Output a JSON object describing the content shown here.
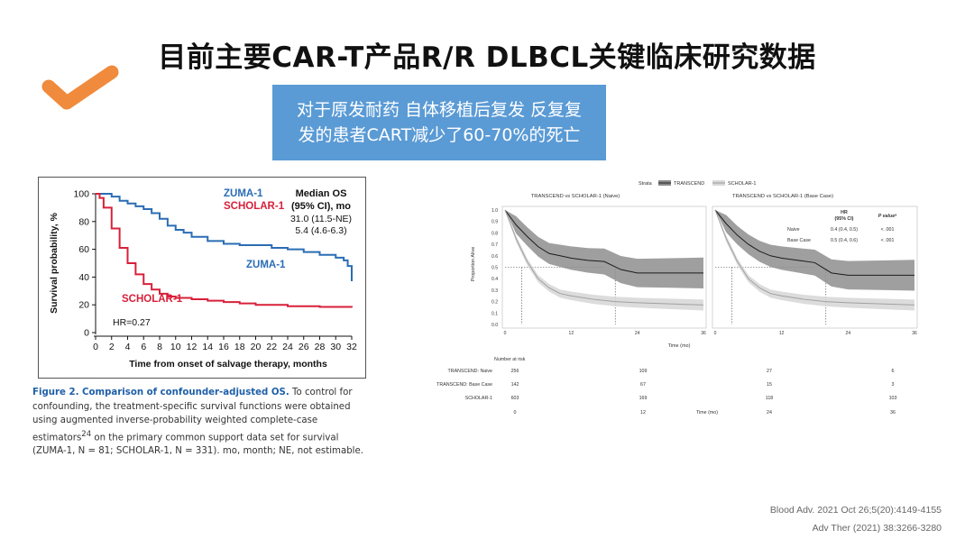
{
  "slide": {
    "title": "目前主要CAR-T产品R/R DLBCL关键临床研究数据",
    "callout_line1": "对于原发耐药 自体移植后复发 反复复",
    "callout_line2": "发的患者CART减少了60-70%的死亡",
    "ref1": "Blood Adv. 2021 Oct 26;5(20):4149-4155",
    "ref2": "Adv Ther (2021) 38:3266-3280",
    "check_icon": "orange-checkmark-icon",
    "colors": {
      "check": "#f08a3c",
      "callout": "#5b9bd5",
      "zuma": "#2a6db5",
      "scholar": "#d8203a"
    }
  },
  "figure1": {
    "caption_bold": "Figure 2. Comparison of confounder-adjusted OS.",
    "caption_text": " To control for confounding, the treatment-specific survival functions were obtained using augmented inverse-probability weighted complete-case estimators",
    "caption_sup": "24",
    "caption_tail": " on the primary common support data set for survival (ZUMA-1, N = 81; SCHOLAR-1, N = 331). mo, month; NE, not estimable.",
    "legend_zuma": "ZUMA-1",
    "legend_scholar": "SCHOLAR-1",
    "median_header1": "Median OS",
    "median_header2": "(95% CI), mo",
    "median_zuma": "31.0 (11.5-NE)",
    "median_scholar": "5.4 (4.6-6.3)",
    "label_zuma": "ZUMA-1",
    "label_scholar": "SCHOLAR-1",
    "hr": "HR=0.27"
  },
  "figure2": {
    "strata_label": "Strata",
    "legend_transcend": "TRANSCEND",
    "legend_scholar": "SCHOLAR-1",
    "panel_left_title": "TRANSCEND vs SCHOLAR-1 (Naive)",
    "panel_right_title": "TRANSCEND vs SCHOLAR-1 (Base Case)",
    "ylabel": "Proportion Alive",
    "xlabel": "Time (mo)",
    "hr_header": "HR",
    "hr_subheader": "(95% CI)",
    "p_header": "P valueᵃ",
    "hr_rows": [
      {
        "label": "Naive",
        "hr": "0.4 (0.4, 0.5)",
        "p": "< .001"
      },
      {
        "label": "Base Case",
        "hr": "0.5 (0.4, 0.6)",
        "p": "< .001"
      }
    ],
    "risk_header": "Number at risk",
    "risk_rows": [
      {
        "label": "TRANSCEND: Naive",
        "values": [
          "256",
          "109",
          "27",
          "6"
        ]
      },
      {
        "label": "TRANSCEND: Base Case",
        "values": [
          "142",
          "67",
          "15",
          "3"
        ]
      },
      {
        "label": "SCHOLAR-1",
        "values": [
          "603",
          "169",
          "118",
          "103"
        ]
      }
    ],
    "risk_ticks": [
      "0",
      "12",
      "24",
      "36"
    ],
    "risk_xlabel": "Time (mo)"
  },
  "chart_data": [
    {
      "type": "line",
      "xlabel": "Time from onset of salvage therapy, months",
      "ylabel": "Survival probability, %",
      "xlim": [
        0,
        32
      ],
      "ylim": [
        0,
        100
      ],
      "xticks": [
        0,
        2,
        4,
        6,
        8,
        10,
        12,
        14,
        16,
        18,
        20,
        22,
        24,
        26,
        28,
        30,
        32
      ],
      "yticks": [
        0,
        20,
        40,
        60,
        80,
        100
      ],
      "grid": false,
      "legend": "top-right",
      "series": [
        {
          "name": "ZUMA-1",
          "color": "#2a6db5",
          "x": [
            0,
            1,
            2,
            3,
            4,
            5,
            6,
            7,
            8,
            9,
            10,
            11,
            12,
            14,
            16,
            18,
            20,
            22,
            24,
            26,
            28,
            30,
            31,
            31.5,
            32
          ],
          "y": [
            100,
            100,
            98,
            95,
            93,
            91,
            89,
            86,
            82,
            77,
            74,
            72,
            69,
            66,
            64,
            63,
            63,
            61,
            60,
            58,
            56,
            54,
            52,
            48,
            37
          ]
        },
        {
          "name": "SCHOLAR-1",
          "color": "#d8203a",
          "x": [
            0,
            0.5,
            1,
            2,
            3,
            4,
            5,
            6,
            7,
            8,
            9,
            10,
            12,
            14,
            16,
            18,
            20,
            24,
            28,
            32
          ],
          "y": [
            100,
            97,
            90,
            75,
            61,
            50,
            42,
            35,
            31,
            28,
            26,
            25,
            24,
            23,
            22,
            21,
            20,
            19,
            18.5,
            18
          ]
        }
      ]
    },
    {
      "type": "line",
      "title": "TRANSCEND vs SCHOLAR-1 (Naive)",
      "xlabel": "Time (mo)",
      "ylabel": "Proportion Alive",
      "xlim": [
        0,
        36
      ],
      "ylim": [
        0,
        1
      ],
      "xticks": [
        0,
        12,
        24,
        36
      ],
      "yticks": [
        0,
        0.1,
        0.2,
        0.3,
        0.4,
        0.5,
        0.6,
        0.7,
        0.8,
        0.9,
        1.0
      ],
      "series": [
        {
          "name": "TRANSCEND",
          "x": [
            0,
            2,
            4,
            6,
            8,
            10,
            12,
            15,
            18,
            21,
            24,
            30,
            36
          ],
          "y": [
            1.0,
            0.87,
            0.77,
            0.68,
            0.62,
            0.6,
            0.58,
            0.56,
            0.55,
            0.48,
            0.45,
            0.45,
            0.45
          ]
        },
        {
          "name": "SCHOLAR-1",
          "x": [
            0,
            2,
            4,
            6,
            8,
            10,
            12,
            16,
            20,
            24,
            30,
            36
          ],
          "y": [
            1.0,
            0.75,
            0.55,
            0.4,
            0.32,
            0.27,
            0.25,
            0.22,
            0.2,
            0.19,
            0.18,
            0.17
          ]
        }
      ]
    },
    {
      "type": "line",
      "title": "TRANSCEND vs SCHOLAR-1 (Base Case)",
      "xlabel": "Time (mo)",
      "xlim": [
        0,
        36
      ],
      "ylim": [
        0,
        1
      ],
      "xticks": [
        0,
        12,
        24,
        36
      ],
      "series": [
        {
          "name": "TRANSCEND",
          "x": [
            0,
            2,
            4,
            6,
            8,
            10,
            12,
            15,
            18,
            21,
            24,
            30,
            36
          ],
          "y": [
            1.0,
            0.88,
            0.78,
            0.7,
            0.64,
            0.6,
            0.58,
            0.56,
            0.54,
            0.45,
            0.43,
            0.43,
            0.43
          ]
        },
        {
          "name": "SCHOLAR-1",
          "x": [
            0,
            2,
            4,
            6,
            8,
            10,
            12,
            16,
            20,
            24,
            30,
            36
          ],
          "y": [
            1.0,
            0.75,
            0.55,
            0.4,
            0.32,
            0.27,
            0.25,
            0.22,
            0.2,
            0.19,
            0.18,
            0.17
          ]
        }
      ]
    }
  ]
}
